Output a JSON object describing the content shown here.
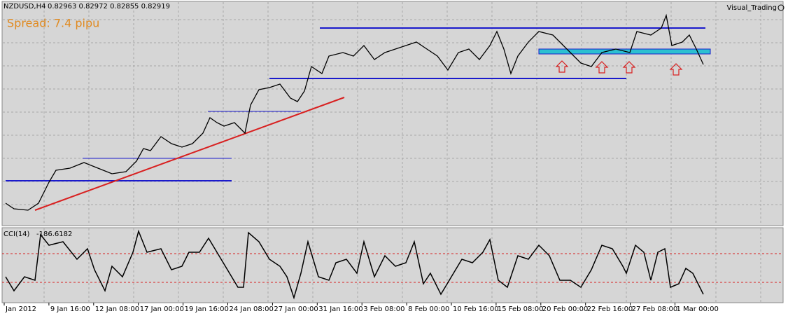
{
  "header": {
    "symbol": "NZDUSD,H4",
    "quote": "0.82963 0.82972 0.82855 0.82919"
  },
  "spread": "Spread: 7.4 pipu",
  "watermark": "Visual_Trading",
  "indicator": {
    "name": "CCI(14)",
    "reading": "-186.6182"
  },
  "time_axis": [
    "Jan 2012",
    "9 Jan 16:00",
    "12 Jan 08:00",
    "17 Jan 00:00",
    "19 Jan 16:00",
    "24 Jan 08:00",
    "27 Jan 00:00",
    "31 Jan 16:00",
    "3 Feb 08:00",
    "8 Feb 00:00",
    "10 Feb 16:00",
    "15 Feb 08:00",
    "20 Feb 00:00",
    "22 Feb 16:00",
    "27 Feb 08:00",
    "1 Mar 00:00"
  ]
}
